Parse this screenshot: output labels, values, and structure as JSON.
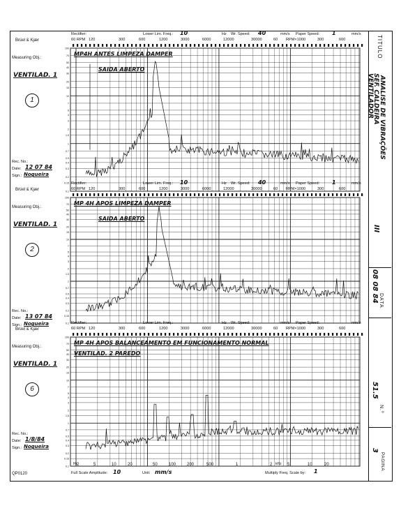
{
  "side": {
    "titulo_label": "TITULO",
    "titulo_lines": [
      "SEF. CALDEIRA",
      "VENTILADOR",
      "ANALISE DE VIBRAÇÕES"
    ],
    "titulo_number": "III",
    "data_label": "DATA",
    "data_value": "08 08 84",
    "numero_label": "N.º",
    "numero_value": "51.5",
    "pagina_label": "PAGINA",
    "pagina_value": "3"
  },
  "form": {
    "brand": "Brüel & Kjær",
    "measuring": "Measuring Obj.:",
    "rec_no": "Rec. No.:",
    "date": "Date:",
    "sign": "Sign.:",
    "rectifier": "Rectifier:",
    "lower_lim": "Lower Lim. Freq.:",
    "hz": "Hz",
    "wr_speed": "Wr. Speed:",
    "mms": "mm/s",
    "paper_speed": "Paper Speed:",
    "rpm_label": "60 RPM",
    "rpm_ticks": [
      "120",
      "300",
      "600",
      "1200",
      "3000",
      "6000",
      "12000",
      "30000",
      "60",
      "RPM×1000",
      "300",
      "600"
    ],
    "form_code": "QP0120",
    "full_scale": "Full Scale Amplitude:",
    "unit_label": "Unit:",
    "multiply": "Multiply Freq. Scale by:",
    "bottom_freq_ticks": [
      "2",
      "5",
      "10",
      "20",
      "50",
      "100",
      "200",
      "500",
      "1",
      "2",
      "5",
      "10",
      "20"
    ],
    "hz_small": "Hz",
    "khz": "kHz",
    "y_ticks": [
      "100",
      "70",
      "50",
      "40",
      "30",
      "20",
      "15",
      "10",
      "7",
      "5",
      "4",
      "3",
      "2",
      "1.5",
      "1",
      "0.7",
      "0.5",
      "0.4",
      "0.3",
      "0.2",
      "0.15",
      "0.1"
    ]
  },
  "panels": [
    {
      "note_line1": "MP4H ANTES LIMPEZA DAMPER",
      "note_line2": "SAIDA ABERTO",
      "measuring_value": "VENTILAD. 1",
      "circle_number": "1",
      "rec_value": "",
      "date_value": "12 07 84",
      "sign_value": "Nogueira",
      "lower_lim_value": "10",
      "wr_speed_value": "40",
      "paper_speed_value": "1"
    },
    {
      "note_line1": "MP 4H APOS LIMPEZA DAMPER",
      "note_line2": "SAIDA ABERTO",
      "measuring_value": "VENTILAD. 1",
      "circle_number": "2",
      "rec_value": "",
      "date_value": "13 07 84",
      "sign_value": "Nogueira",
      "lower_lim_value": "10",
      "wr_speed_value": "40",
      "paper_speed_value": "1"
    },
    {
      "note_line1": "MP 4H APOS BALANCEAMENTO EM FUNCIONAMENTO NORMAL",
      "note_line2": "VENTILAD. 2 PAREDO",
      "measuring_value": "VENTILAD. 1",
      "circle_number": "6",
      "rec_value": "",
      "date_value": "1/8/84",
      "sign_value": "Nogueira",
      "lower_lim_value": "",
      "wr_speed_value": "",
      "paper_speed_value": ""
    }
  ],
  "footer": {
    "full_scale_value": "10",
    "unit_value": "mm/s",
    "multiply_value": "1"
  }
}
